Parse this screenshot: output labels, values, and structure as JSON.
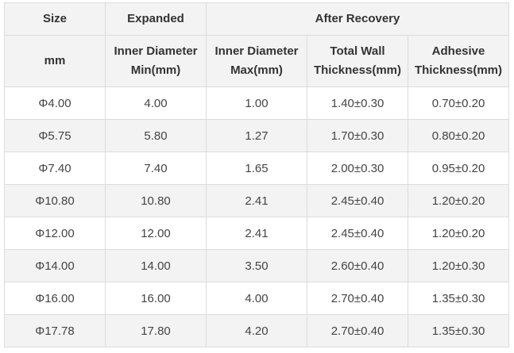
{
  "header": {
    "size": "Size",
    "expanded": "Expanded",
    "after_recovery": "After Recovery",
    "mm": "mm",
    "inner_min": "Inner Diameter Min(mm)",
    "inner_max": "Inner Diameter Max(mm)",
    "total_wall": "Total Wall Thickness(mm)",
    "adhesive": "Adhesive Thickness(mm)"
  },
  "rows": [
    [
      "Φ4.00",
      "4.00",
      "1.00",
      "1.40±0.30",
      "0.70±0.20"
    ],
    [
      "Φ5.75",
      "5.80",
      "1.27",
      "1.70±0.30",
      "0.80±0.20"
    ],
    [
      "Φ7.40",
      "7.40",
      "1.65",
      "2.00±0.30",
      "0.95±0.20"
    ],
    [
      "Φ10.80",
      "10.80",
      "2.41",
      "2.45±0.40",
      "1.20±0.20"
    ],
    [
      "Φ12.00",
      "12.00",
      "2.41",
      "2.45±0.40",
      "1.20±0.20"
    ],
    [
      "Φ14.00",
      "14.00",
      "3.50",
      "2.60±0.40",
      "1.20±0.30"
    ],
    [
      "Φ16.00",
      "16.00",
      "4.00",
      "2.70±0.40",
      "1.35±0.30"
    ],
    [
      "Φ17.78",
      "17.80",
      "4.20",
      "2.70±0.40",
      "1.35±0.30"
    ]
  ]
}
